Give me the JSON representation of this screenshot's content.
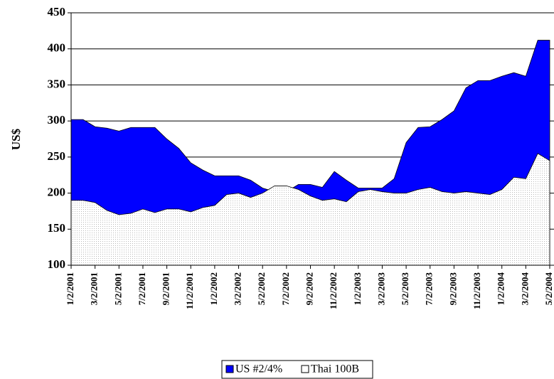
{
  "chart_data": {
    "type": "area",
    "y_label": "US$",
    "categories": [
      "1/2/2001",
      null,
      "3/2/2001",
      null,
      "5/2/2001",
      null,
      "7/2/2001",
      null,
      "9/2/2001",
      null,
      "11/2/2001",
      null,
      "1/2/2002",
      null,
      "3/2/2002",
      null,
      "5/2/2002",
      null,
      "7/2/2002",
      null,
      "9/2/2002",
      null,
      "11/2/2002",
      null,
      "1/2/2003",
      null,
      "3/2/2003",
      null,
      "5/2/2003",
      null,
      "7/2/2003",
      null,
      "9/2/2003",
      null,
      "11/2/2003",
      null,
      "1/2/2004",
      null,
      "3/2/2004",
      null,
      "5/2/2004"
    ],
    "series": [
      {
        "name": "US #2/4%",
        "color": "#0000ff",
        "values": [
          302,
          302,
          292,
          290,
          286,
          291,
          291,
          291,
          275,
          262,
          242,
          232,
          224,
          224,
          224,
          218,
          207,
          202,
          202,
          212,
          212,
          208,
          230,
          218,
          207,
          207,
          207,
          220,
          270,
          291,
          292,
          302,
          314,
          346,
          356,
          356,
          362,
          367,
          362,
          412,
          412
        ]
      },
      {
        "name": "Thai 100B",
        "color": "#ffffff",
        "values": [
          190,
          190,
          187,
          176,
          170,
          172,
          178,
          173,
          178,
          178,
          174,
          180,
          183,
          198,
          200,
          194,
          200,
          210,
          210,
          205,
          196,
          190,
          192,
          188,
          202,
          205,
          202,
          200,
          200,
          205,
          208,
          202,
          200,
          202,
          200,
          198,
          205,
          222,
          220,
          255,
          245
        ]
      }
    ],
    "ylim": [
      100,
      450
    ],
    "yticks": [
      100,
      150,
      200,
      250,
      300,
      350,
      400,
      450
    ],
    "grid": true,
    "legend": "bottom"
  }
}
